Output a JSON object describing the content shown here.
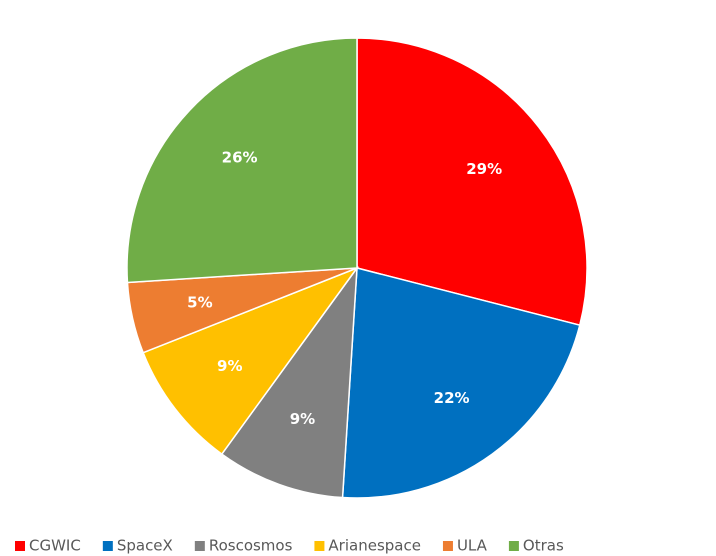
{
  "chart_data": {
    "type": "pie",
    "categories": [
      "CGWIC",
      "SpaceX",
      "Roscosmos",
      "Arianespace",
      "ULA",
      "Otras"
    ],
    "values": [
      29,
      22,
      9,
      9,
      5,
      26
    ],
    "value_labels": [
      "29%",
      "22%",
      "9%",
      "9%",
      "5%",
      "26%"
    ],
    "colors": [
      "#ff0000",
      "#0070c0",
      "#808080",
      "#ffc000",
      "#ed7d31",
      "#70ad47"
    ],
    "legend": "bottom"
  }
}
